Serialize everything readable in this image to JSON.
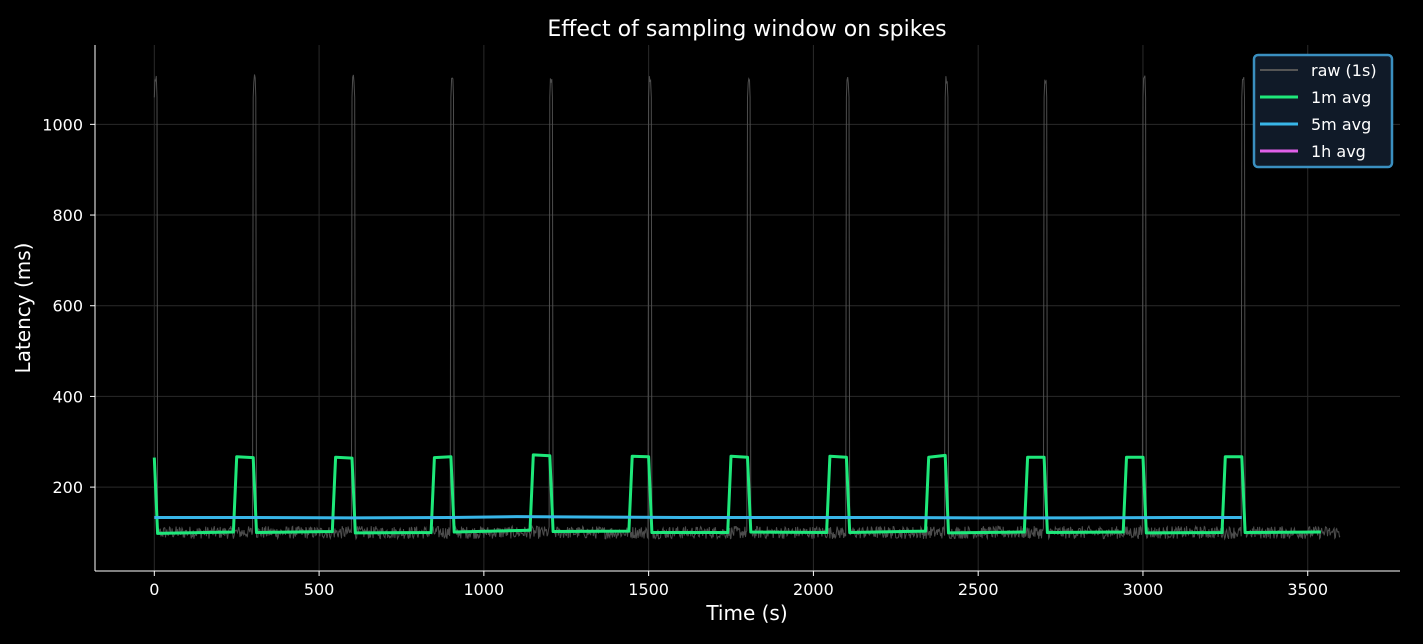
{
  "chart_data": {
    "type": "line",
    "title": "Effect of sampling window on spikes",
    "xlabel": "Time (s)",
    "ylabel": "Latency (ms)",
    "xlim": [
      -180,
      3780
    ],
    "ylim": [
      15,
      1175
    ],
    "xticks": [
      0,
      500,
      1000,
      1500,
      2000,
      2500,
      3000,
      3500
    ],
    "yticks": [
      200,
      400,
      600,
      800,
      1000
    ],
    "grid": true,
    "legend_position": "top-right",
    "raw_baseline_ms": 100,
    "raw_spike_peak_ms": 1110,
    "spike_starts_s": [
      0,
      300,
      600,
      900,
      1200,
      1500,
      1800,
      2100,
      2400,
      2700,
      3000,
      3300
    ],
    "spike_duration_s": 10,
    "series": [
      {
        "name": "raw (1s)",
        "color": "#555555",
        "x_range": [
          0,
          3599
        ]
      },
      {
        "name": "1m avg",
        "color": "#1ee87a",
        "x": [
          0,
          10,
          240,
          250,
          300,
          310,
          540,
          550,
          600,
          610,
          840,
          850,
          900,
          910,
          1140,
          1150,
          1200,
          1210,
          1440,
          1450,
          1500,
          1510,
          1740,
          1750,
          1800,
          1810,
          2040,
          2050,
          2100,
          2110,
          2340,
          2350,
          2400,
          2410,
          2640,
          2650,
          2700,
          2710,
          2940,
          2950,
          3000,
          3010,
          3240,
          3250,
          3300,
          3310,
          3540
        ],
        "y": [
          265,
          98,
          101,
          267,
          265,
          100,
          102,
          266,
          264,
          99,
          100,
          265,
          267,
          101,
          105,
          271,
          269,
          102,
          103,
          268,
          267,
          100,
          100,
          268,
          266,
          101,
          100,
          268,
          266,
          100,
          103,
          266,
          270,
          99,
          101,
          266,
          266,
          100,
          101,
          266,
          266,
          99,
          100,
          267,
          267,
          100,
          101
        ]
      },
      {
        "name": "5m avg",
        "color": "#38b6e8",
        "x": [
          0,
          300,
          600,
          900,
          1100,
          1300,
          1600,
          1900,
          2200,
          2500,
          2800,
          3100,
          3300
        ],
        "y": [
          133,
          133,
          132,
          133,
          135,
          134,
          133,
          133,
          133,
          132,
          132,
          133,
          133
        ]
      },
      {
        "name": "1h avg",
        "color": "#e060e8",
        "x": [],
        "y": []
      }
    ]
  }
}
